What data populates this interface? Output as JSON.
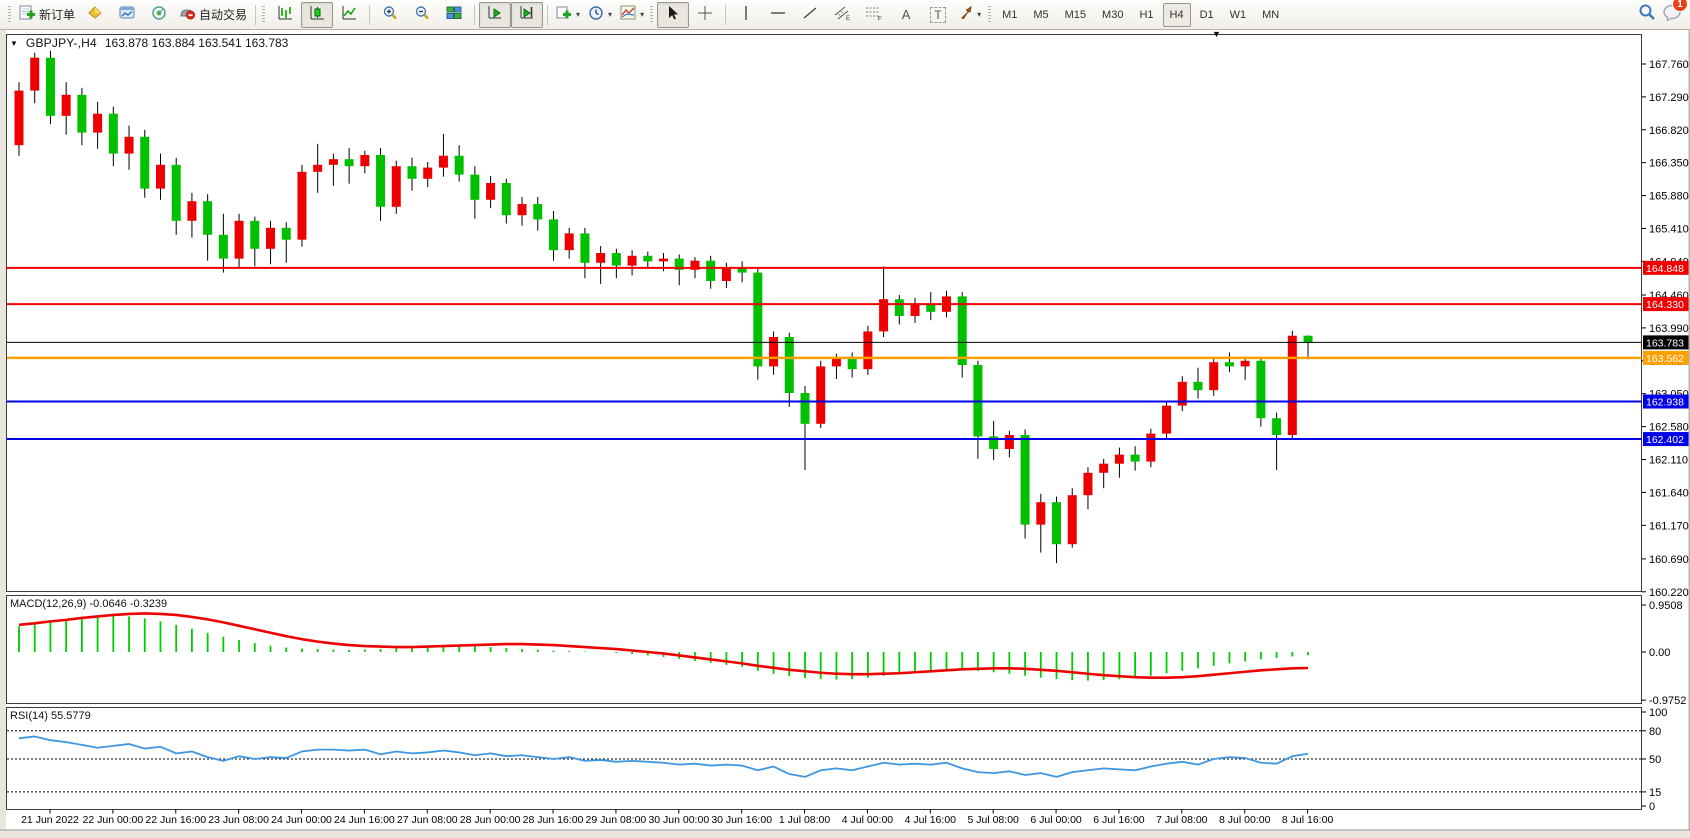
{
  "toolbar": {
    "new_order_label": "新订单",
    "autotrading_label": "自动交易",
    "text_tool": "A",
    "label_tool": "T",
    "badge": "1",
    "timeframes": [
      {
        "label": "M1",
        "active": false
      },
      {
        "label": "M5",
        "active": false
      },
      {
        "label": "M15",
        "active": false
      },
      {
        "label": "M30",
        "active": false
      },
      {
        "label": "H1",
        "active": false
      },
      {
        "label": "H4",
        "active": true
      },
      {
        "label": "D1",
        "active": false
      },
      {
        "label": "W1",
        "active": false
      },
      {
        "label": "MN",
        "active": false
      }
    ]
  },
  "chart": {
    "symbol_period": "GBPJPY-,H4",
    "ohlc_text": "163.878 163.884 163.541 163.783",
    "open": "163.878",
    "high": "163.884",
    "low": "163.541",
    "close": "163.783"
  },
  "chart_data": {
    "type": "candlestick",
    "symbol": "GBPJPY-",
    "timeframe": "H4",
    "bull_color": "#ee0000",
    "bear_color": "#00c000",
    "price_ticks": [
      "167.760",
      "167.290",
      "166.820",
      "166.350",
      "165.880",
      "165.410",
      "164.940",
      "164.460",
      "163.990",
      "163.520",
      "163.050",
      "162.580",
      "162.110",
      "161.640",
      "161.170",
      "160.690",
      "160.220"
    ],
    "x_labels": [
      "21 Jun 2022",
      "22 Jun 00:00",
      "22 Jun 16:00",
      "23 Jun 08:00",
      "24 Jun 00:00",
      "24 Jun 16:00",
      "27 Jun 08:00",
      "28 Jun 00:00",
      "28 Jun 16:00",
      "29 Jun 08:00",
      "30 Jun 00:00",
      "30 Jun 16:00",
      "1 Jul 08:00",
      "4 Jul 00:00",
      "4 Jul 16:00",
      "5 Jul 08:00",
      "6 Jul 00:00",
      "6 Jul 16:00",
      "7 Jul 08:00",
      "8 Jul 00:00",
      "8 Jul 16:00"
    ],
    "hlines": [
      {
        "price": 164.848,
        "label": "164.848",
        "color": "#f20000",
        "width": 2
      },
      {
        "price": 164.33,
        "label": "164.330",
        "color": "#f20000",
        "width": 2
      },
      {
        "price": 163.783,
        "label": "163.783",
        "color": "#000000",
        "width": 1
      },
      {
        "price": 163.562,
        "label": "163.562",
        "color": "#ffa000",
        "width": 2.5
      },
      {
        "price": 162.938,
        "label": "162.938",
        "color": "#0000e8",
        "width": 2
      },
      {
        "price": 162.402,
        "label": "162.402",
        "color": "#0000e8",
        "width": 2
      }
    ],
    "candles": [
      [
        166.6,
        167.5,
        166.45,
        167.38
      ],
      [
        167.38,
        167.92,
        167.2,
        167.85
      ],
      [
        167.85,
        167.95,
        166.9,
        167.02
      ],
      [
        167.02,
        167.5,
        166.75,
        167.32
      ],
      [
        167.32,
        167.42,
        166.6,
        166.78
      ],
      [
        166.78,
        167.22,
        166.55,
        167.05
      ],
      [
        167.05,
        167.15,
        166.3,
        166.48
      ],
      [
        166.48,
        166.88,
        166.25,
        166.72
      ],
      [
        166.72,
        166.82,
        165.85,
        165.98
      ],
      [
        165.98,
        166.48,
        165.82,
        166.32
      ],
      [
        166.32,
        166.42,
        165.32,
        165.52
      ],
      [
        165.52,
        165.92,
        165.28,
        165.8
      ],
      [
        165.8,
        165.9,
        164.95,
        165.32
      ],
      [
        165.32,
        165.62,
        164.78,
        164.98
      ],
      [
        164.98,
        165.62,
        164.85,
        165.52
      ],
      [
        165.52,
        165.58,
        164.87,
        165.12
      ],
      [
        165.12,
        165.52,
        164.9,
        165.42
      ],
      [
        165.42,
        165.5,
        164.92,
        165.25
      ],
      [
        165.25,
        166.32,
        165.15,
        166.22
      ],
      [
        166.22,
        166.62,
        165.92,
        166.32
      ],
      [
        166.32,
        166.48,
        166.02,
        166.4
      ],
      [
        166.4,
        166.56,
        166.05,
        166.3
      ],
      [
        166.3,
        166.52,
        166.2,
        166.46
      ],
      [
        166.46,
        166.56,
        165.52,
        165.72
      ],
      [
        165.72,
        166.38,
        165.62,
        166.3
      ],
      [
        166.3,
        166.42,
        165.95,
        166.12
      ],
      [
        166.12,
        166.36,
        166.0,
        166.28
      ],
      [
        166.28,
        166.76,
        166.15,
        166.45
      ],
      [
        166.45,
        166.6,
        166.08,
        166.18
      ],
      [
        166.18,
        166.3,
        165.55,
        165.82
      ],
      [
        165.82,
        166.16,
        165.7,
        166.06
      ],
      [
        166.06,
        166.12,
        165.48,
        165.6
      ],
      [
        165.6,
        165.86,
        165.45,
        165.76
      ],
      [
        165.76,
        165.86,
        165.38,
        165.54
      ],
      [
        165.54,
        165.66,
        164.95,
        165.1
      ],
      [
        165.1,
        165.42,
        164.98,
        165.34
      ],
      [
        165.34,
        165.42,
        164.7,
        164.92
      ],
      [
        164.92,
        165.16,
        164.62,
        165.06
      ],
      [
        165.06,
        165.12,
        164.7,
        164.88
      ],
      [
        164.88,
        165.1,
        164.74,
        165.02
      ],
      [
        165.02,
        165.08,
        164.84,
        164.94
      ],
      [
        164.94,
        165.06,
        164.8,
        164.98
      ],
      [
        164.98,
        165.04,
        164.6,
        164.82
      ],
      [
        164.82,
        165.0,
        164.7,
        164.95
      ],
      [
        164.95,
        165.02,
        164.55,
        164.66
      ],
      [
        164.66,
        164.92,
        164.56,
        164.86
      ],
      [
        164.86,
        164.94,
        164.64,
        164.78
      ],
      [
        164.78,
        164.86,
        163.25,
        163.44
      ],
      [
        163.44,
        163.94,
        163.32,
        163.86
      ],
      [
        163.86,
        163.92,
        162.86,
        163.06
      ],
      [
        163.06,
        163.16,
        161.96,
        162.62
      ],
      [
        162.62,
        163.52,
        162.56,
        163.44
      ],
      [
        163.44,
        163.62,
        163.26,
        163.56
      ],
      [
        163.56,
        163.64,
        163.28,
        163.4
      ],
      [
        163.4,
        164.02,
        163.32,
        163.94
      ],
      [
        163.94,
        164.87,
        163.86,
        164.4
      ],
      [
        164.4,
        164.46,
        164.04,
        164.16
      ],
      [
        164.16,
        164.42,
        164.06,
        164.34
      ],
      [
        164.34,
        164.5,
        164.1,
        164.22
      ],
      [
        164.22,
        164.52,
        164.14,
        164.44
      ],
      [
        164.44,
        164.5,
        163.28,
        163.46
      ],
      [
        163.46,
        163.52,
        162.12,
        162.44
      ],
      [
        162.44,
        162.66,
        162.1,
        162.26
      ],
      [
        162.26,
        162.52,
        162.14,
        162.46
      ],
      [
        162.46,
        162.54,
        160.98,
        161.18
      ],
      [
        161.18,
        161.62,
        160.78,
        161.5
      ],
      [
        161.5,
        161.58,
        160.63,
        160.9
      ],
      [
        160.9,
        161.7,
        160.85,
        161.6
      ],
      [
        161.6,
        162.0,
        161.4,
        161.92
      ],
      [
        161.92,
        162.12,
        161.7,
        162.05
      ],
      [
        162.05,
        162.28,
        161.85,
        162.18
      ],
      [
        162.18,
        162.3,
        161.95,
        162.08
      ],
      [
        162.08,
        162.55,
        162.0,
        162.48
      ],
      [
        162.48,
        162.95,
        162.4,
        162.88
      ],
      [
        162.88,
        163.3,
        162.8,
        163.22
      ],
      [
        163.22,
        163.42,
        162.98,
        163.1
      ],
      [
        163.1,
        163.56,
        163.02,
        163.5
      ],
      [
        163.5,
        163.64,
        163.36,
        163.44
      ],
      [
        163.44,
        163.58,
        163.25,
        163.52
      ],
      [
        163.52,
        163.56,
        162.58,
        162.7
      ],
      [
        162.7,
        162.78,
        161.96,
        162.46
      ],
      [
        162.46,
        163.95,
        162.4,
        163.878
      ],
      [
        163.878,
        163.884,
        163.541,
        163.783
      ]
    ],
    "macd": {
      "label": "MACD(12,26,9)",
      "values_text": "-0.0646 -0.3239",
      "main_value": "-0.0646",
      "signal_value": "-0.3239",
      "ticks": [
        "0.9508",
        "0.00",
        "-0.9752"
      ],
      "hist_color": "#00cc00",
      "signal_color": "#ee0000",
      "hist": [
        0.52,
        0.58,
        0.62,
        0.66,
        0.7,
        0.73,
        0.74,
        0.72,
        0.68,
        0.62,
        0.55,
        0.47,
        0.39,
        0.31,
        0.24,
        0.18,
        0.13,
        0.09,
        0.07,
        0.06,
        0.05,
        0.04,
        0.05,
        0.06,
        0.08,
        0.1,
        0.12,
        0.13,
        0.13,
        0.12,
        0.1,
        0.08,
        0.06,
        0.05,
        0.03,
        0.02,
        0.01,
        0.0,
        -0.02,
        -0.04,
        -0.07,
        -0.1,
        -0.14,
        -0.18,
        -0.22,
        -0.26,
        -0.3,
        -0.38,
        -0.44,
        -0.49,
        -0.53,
        -0.55,
        -0.56,
        -0.55,
        -0.52,
        -0.48,
        -0.44,
        -0.4,
        -0.37,
        -0.35,
        -0.36,
        -0.38,
        -0.41,
        -0.44,
        -0.48,
        -0.52,
        -0.55,
        -0.57,
        -0.58,
        -0.57,
        -0.55,
        -0.52,
        -0.48,
        -0.43,
        -0.38,
        -0.33,
        -0.28,
        -0.23,
        -0.19,
        -0.15,
        -0.12,
        -0.09,
        -0.0646
      ],
      "signal": [
        0.55,
        0.58,
        0.62,
        0.65,
        0.69,
        0.72,
        0.75,
        0.77,
        0.78,
        0.77,
        0.75,
        0.71,
        0.66,
        0.6,
        0.53,
        0.46,
        0.39,
        0.32,
        0.26,
        0.21,
        0.17,
        0.14,
        0.12,
        0.11,
        0.1,
        0.1,
        0.11,
        0.12,
        0.13,
        0.14,
        0.15,
        0.16,
        0.16,
        0.15,
        0.14,
        0.12,
        0.1,
        0.08,
        0.06,
        0.03,
        0.0,
        -0.03,
        -0.07,
        -0.11,
        -0.15,
        -0.19,
        -0.23,
        -0.28,
        -0.32,
        -0.36,
        -0.39,
        -0.42,
        -0.44,
        -0.45,
        -0.45,
        -0.44,
        -0.43,
        -0.41,
        -0.39,
        -0.37,
        -0.35,
        -0.34,
        -0.33,
        -0.33,
        -0.34,
        -0.36,
        -0.38,
        -0.41,
        -0.44,
        -0.47,
        -0.49,
        -0.51,
        -0.52,
        -0.52,
        -0.51,
        -0.49,
        -0.46,
        -0.43,
        -0.4,
        -0.37,
        -0.35,
        -0.33,
        -0.3239
      ]
    },
    "rsi": {
      "label": "RSI(14)",
      "value_text": "55.5779",
      "ticks": [
        "100",
        "80",
        "50",
        "15",
        "0"
      ],
      "levels": [
        80,
        50,
        15
      ],
      "color": "#3e97e0",
      "values": [
        72,
        74,
        70,
        68,
        65,
        62,
        64,
        66,
        61,
        63,
        56,
        58,
        52,
        48,
        53,
        50,
        52,
        51,
        58,
        60,
        60,
        59,
        60,
        55,
        58,
        56,
        57,
        59,
        57,
        54,
        56,
        53,
        54,
        52,
        50,
        52,
        48,
        49,
        47,
        48,
        47,
        46,
        44,
        45,
        43,
        44,
        43,
        38,
        42,
        34,
        31,
        38,
        40,
        38,
        42,
        46,
        44,
        45,
        44,
        46,
        40,
        36,
        35,
        37,
        33,
        35,
        31,
        36,
        38,
        40,
        39,
        38,
        42,
        45,
        47,
        44,
        50,
        52,
        51,
        46,
        45,
        53,
        55.5779
      ]
    }
  }
}
